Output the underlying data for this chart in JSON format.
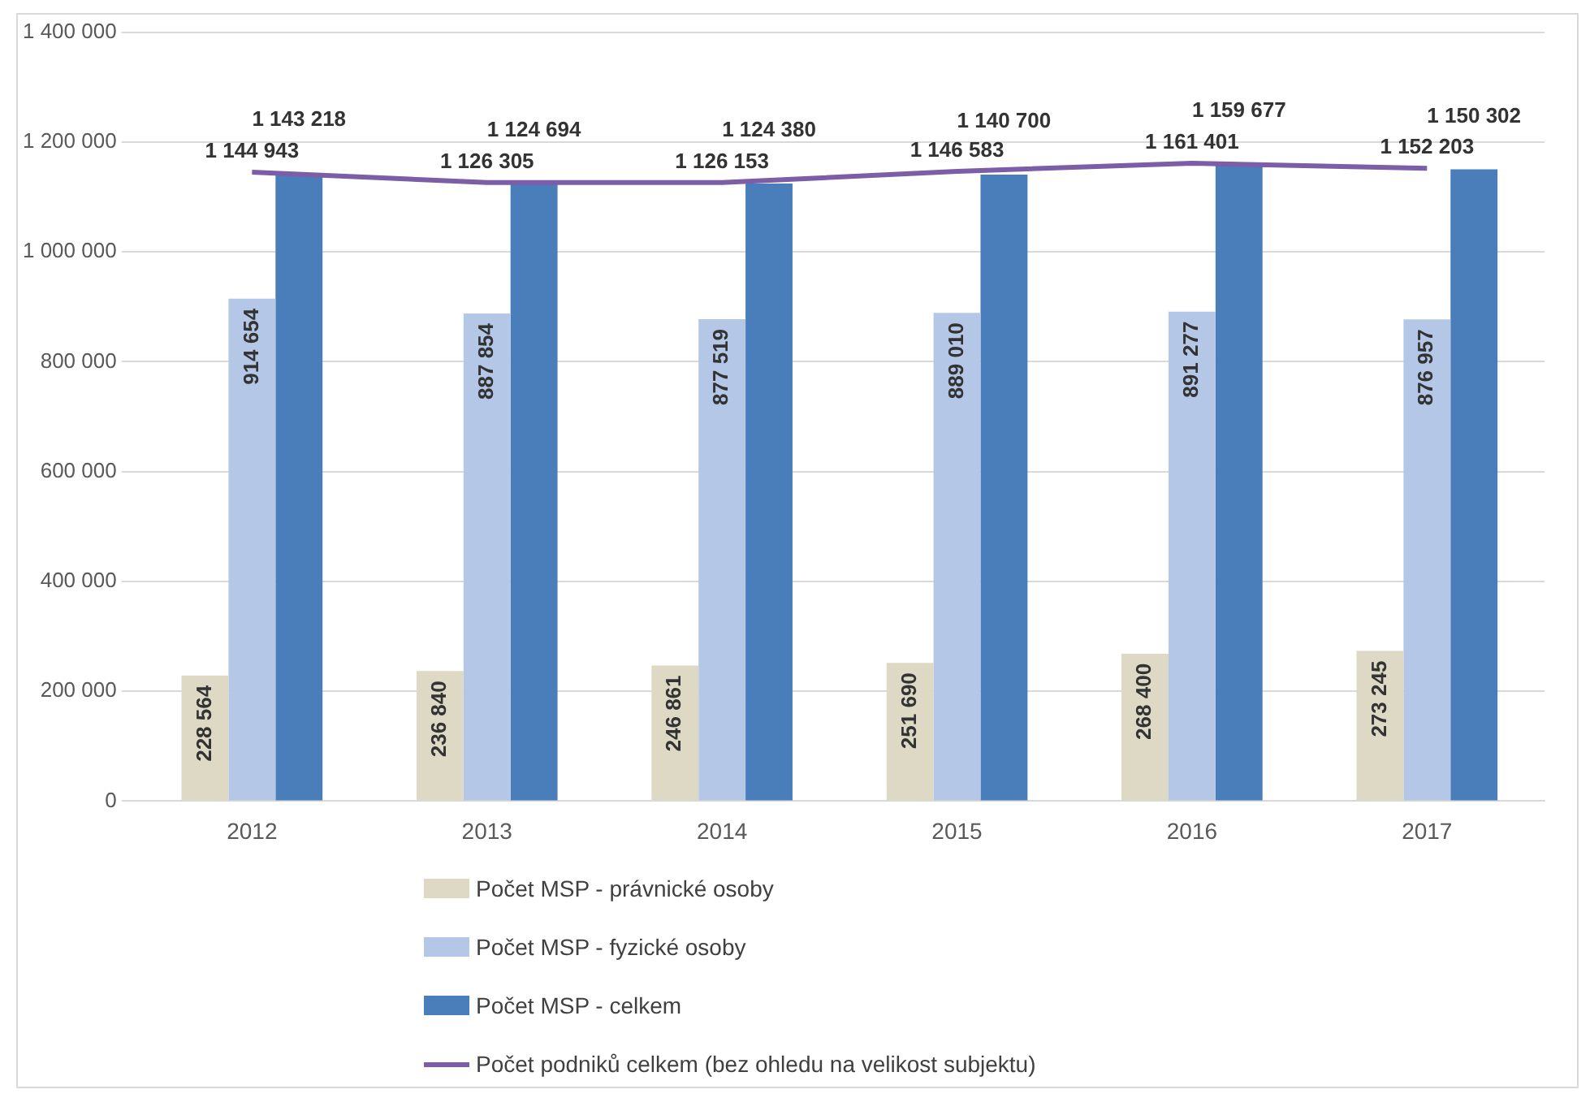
{
  "chart_data": {
    "type": "bar",
    "categories": [
      "2012",
      "2013",
      "2014",
      "2015",
      "2016",
      "2017"
    ],
    "series": [
      {
        "name": "Počet MSP - právnické osoby",
        "color": "#ddd9c4",
        "values": [
          228564,
          236840,
          246861,
          251690,
          268400,
          273245
        ]
      },
      {
        "name": "Počet MSP - fyzické osoby",
        "color": "#b4c7e7",
        "values": [
          914654,
          887854,
          877519,
          889010,
          891277,
          876957
        ]
      },
      {
        "name": "Počet MSP - celkem",
        "color": "#4a7ebb",
        "values": [
          1143218,
          1124694,
          1124380,
          1140700,
          1159677,
          1150302
        ]
      },
      {
        "name": "Počet podniků celkem (bez ohledu na velikost subjektu)",
        "type": "line",
        "color": "#7b5ea7",
        "values": [
          1144943,
          1126305,
          1126153,
          1146583,
          1161401,
          1152203
        ]
      }
    ],
    "ylim": [
      0,
      1400000
    ],
    "yticks": [
      0,
      {
        "value": 200000,
        "label": "200 000"
      },
      {
        "value": 400000,
        "label": "400 000"
      },
      {
        "value": 600000,
        "label": "600 000"
      },
      {
        "value": 800000,
        "label": "800 000"
      },
      {
        "value": 1000000,
        "label": "1 000 000"
      },
      {
        "value": 1200000,
        "label": "1 200 000"
      },
      {
        "value": 1400000,
        "label": "1 400 000"
      }
    ],
    "grid": "y",
    "legend": "bottom",
    "data_labels": true,
    "marker": "none"
  }
}
